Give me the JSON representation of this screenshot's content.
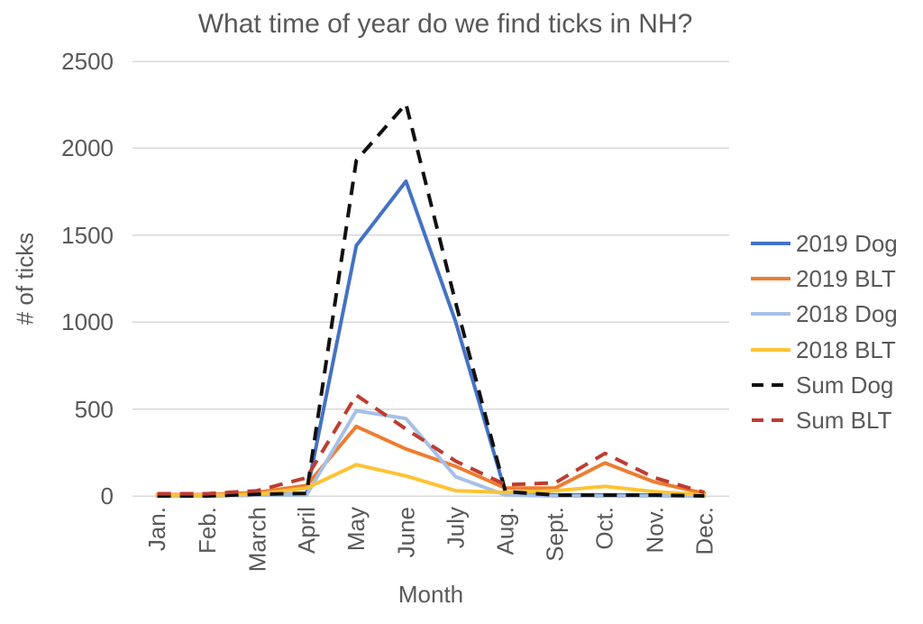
{
  "title": "What time of year do we find ticks in NH?",
  "colors": {
    "text": "#595959",
    "gridline": "#d9d9d9",
    "background": "#ffffff"
  },
  "chart_data": {
    "type": "line",
    "title": "What time of year do we find ticks in NH?",
    "xlabel": "Month",
    "ylabel": "# of ticks",
    "ylim": [
      0,
      2500
    ],
    "yticks": [
      "0",
      "500",
      "1000",
      "1500",
      "2000",
      "2500"
    ],
    "grid": true,
    "legend_position": "right",
    "categories": [
      "Jan.",
      "Feb.",
      "March",
      "April",
      "May",
      "June",
      "July",
      "Aug.",
      "Sept.",
      "Oct.",
      "Nov.",
      "Dec."
    ],
    "series": [
      {
        "name": "2019 Dog",
        "color": "#4472C4",
        "style": "solid",
        "values": [
          0,
          0,
          5,
          10,
          1440,
          1810,
          1000,
          20,
          5,
          5,
          5,
          0
        ]
      },
      {
        "name": "2019 BLT",
        "color": "#ED7D31",
        "style": "solid",
        "values": [
          8,
          8,
          20,
          60,
          400,
          270,
          170,
          45,
          45,
          190,
          80,
          15
        ]
      },
      {
        "name": "2018 Dog",
        "color": "#A6C0E8",
        "style": "solid",
        "values": [
          0,
          0,
          5,
          5,
          490,
          445,
          110,
          5,
          0,
          0,
          0,
          0
        ]
      },
      {
        "name": "2018 BLT",
        "color": "#FFC233",
        "style": "solid",
        "values": [
          5,
          5,
          10,
          45,
          180,
          115,
          30,
          20,
          30,
          55,
          25,
          5
        ]
      },
      {
        "name": "Sum Dog",
        "color": "#111111",
        "style": "dashed",
        "values": [
          0,
          0,
          10,
          15,
          1930,
          2255,
          1110,
          25,
          5,
          5,
          5,
          0
        ]
      },
      {
        "name": "Sum BLT",
        "color": "#BE3C31",
        "style": "dashed",
        "values": [
          13,
          13,
          30,
          105,
          580,
          385,
          200,
          65,
          75,
          245,
          105,
          20
        ]
      }
    ]
  }
}
